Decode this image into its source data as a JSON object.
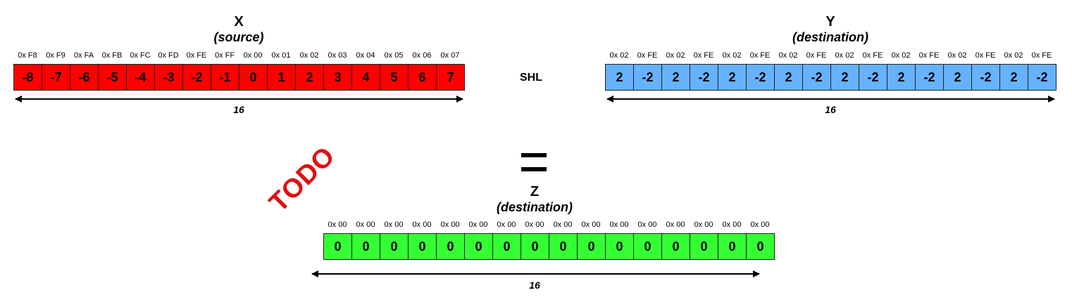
{
  "x_block": {
    "title": "X",
    "subtitle": "(source)",
    "hex": [
      "0x F8",
      "0x F9",
      "0x FA",
      "0x FB",
      "0x FC",
      "0x FD",
      "0x FE",
      "0x FF",
      "0x 00",
      "0x 01",
      "0x 02",
      "0x 03",
      "0x 04",
      "0x 05",
      "0x 06",
      "0x 07"
    ],
    "values": [
      "-8",
      "-7",
      "-6",
      "-5",
      "-4",
      "-3",
      "-2",
      "-1",
      "0",
      "1",
      "2",
      "3",
      "4",
      "5",
      "6",
      "7"
    ],
    "length_label": "16",
    "color": "#ff0000"
  },
  "y_block": {
    "title": "Y",
    "subtitle": "(destination)",
    "hex": [
      "0x 02",
      "0x FE",
      "0x 02",
      "0x FE",
      "0x 02",
      "0x FE",
      "0x 02",
      "0x FE",
      "0x 02",
      "0x FE",
      "0x 02",
      "0x FE",
      "0x 02",
      "0x FE",
      "0x 02",
      "0x FE"
    ],
    "values": [
      "2",
      "-2",
      "2",
      "-2",
      "2",
      "-2",
      "2",
      "-2",
      "2",
      "-2",
      "2",
      "-2",
      "2",
      "-2",
      "2",
      "-2"
    ],
    "length_label": "16",
    "color": "#66b2ff"
  },
  "z_block": {
    "title": "Z",
    "subtitle": "(destination)",
    "hex": [
      "0x 00",
      "0x 00",
      "0x 00",
      "0x 00",
      "0x 00",
      "0x 00",
      "0x 00",
      "0x 00",
      "0x 00",
      "0x 00",
      "0x 00",
      "0x 00",
      "0x 00",
      "0x 00",
      "0x 00",
      "0x 00"
    ],
    "values": [
      "0",
      "0",
      "0",
      "0",
      "0",
      "0",
      "0",
      "0",
      "0",
      "0",
      "0",
      "0",
      "0",
      "0",
      "0",
      "0"
    ],
    "length_label": "16",
    "color": "#33ff33"
  },
  "operator": "SHL",
  "todo_stamp": "TODO"
}
